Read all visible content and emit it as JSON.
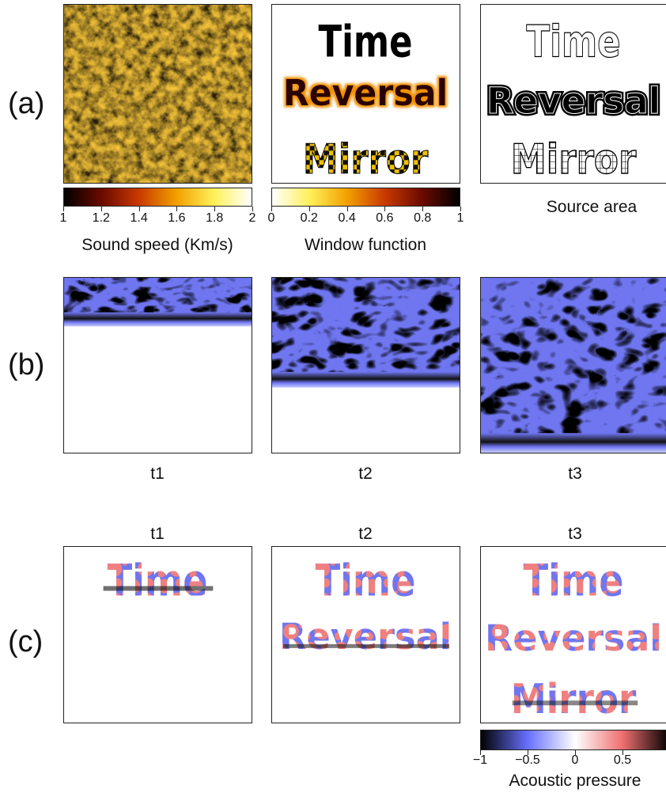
{
  "row_labels": {
    "a": "(a)",
    "b": "(b)",
    "c": "(c)"
  },
  "text_words": [
    "Time",
    "Reversal",
    "Mirror"
  ],
  "sound_speed_bar": {
    "label": "Sound speed (Km/s)",
    "ticks": [
      "1",
      "1.2",
      "1.4",
      "1.6",
      "1.8",
      "2"
    ],
    "colors": [
      "#000000",
      "#6b0a00",
      "#c83a00",
      "#f2a000",
      "#fff05a",
      "#ffffff"
    ]
  },
  "window_bar": {
    "label": "Window function",
    "ticks": [
      "0",
      "0.2",
      "0.4",
      "0.6",
      "0.8",
      "1"
    ],
    "colors": [
      "#ffffff",
      "#fff05a",
      "#f2a000",
      "#c83a00",
      "#6b0a00",
      "#000000"
    ]
  },
  "source_label": "Source area",
  "row_b_times": [
    "t1",
    "t2",
    "t3"
  ],
  "row_c_times": [
    "t1",
    "t2",
    "t3"
  ],
  "pressure_bar": {
    "label": "Acoustic pressure",
    "ticks": [
      "−1",
      "−0.5",
      "0",
      "0.5",
      ""
    ],
    "colors": [
      "#000000",
      "#6870ff",
      "#ffffff",
      "#f07070",
      "#000000"
    ]
  },
  "colors": {
    "red": "#ef8080",
    "blue": "#6f76f0",
    "dark": "#111111",
    "orange": "#f0a000"
  }
}
